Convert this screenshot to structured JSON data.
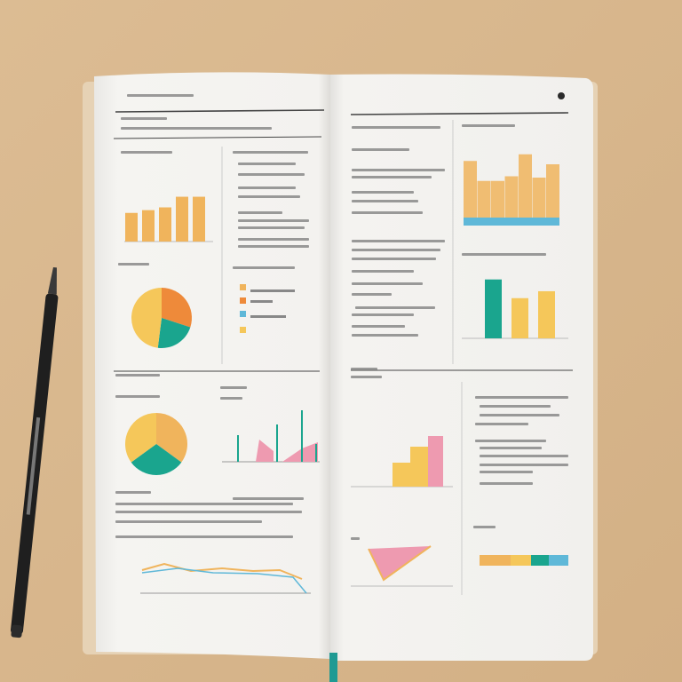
{
  "colors": {
    "table": "#d8b78e",
    "page": "#f4f3f0",
    "orange": "#f0b45c",
    "deep_orange": "#ee8a3a",
    "teal": "#1aa58e",
    "yellow": "#f5c75a",
    "pink": "#ee9ab0",
    "blue": "#5fb8d8",
    "ink": "#3a3a3a",
    "ribbon": "#1f9a93"
  },
  "left_page": {
    "top_bar_levels": [
      0.62,
      0.68,
      0.74,
      0.97,
      0.97
    ],
    "pie_slices": [
      0.3,
      0.22,
      0.48
    ],
    "pie2_slices": [
      0.35,
      0.3,
      0.35
    ]
  },
  "right_page": {
    "top_bar_levels": [
      0.85,
      0.55,
      0.55,
      0.62,
      0.95,
      0.6,
      0.8
    ],
    "mid_bar_levels": [
      0.85,
      0.58,
      0.68
    ],
    "lower_bar_levels": [
      0.45,
      0.75,
      0.95
    ]
  }
}
